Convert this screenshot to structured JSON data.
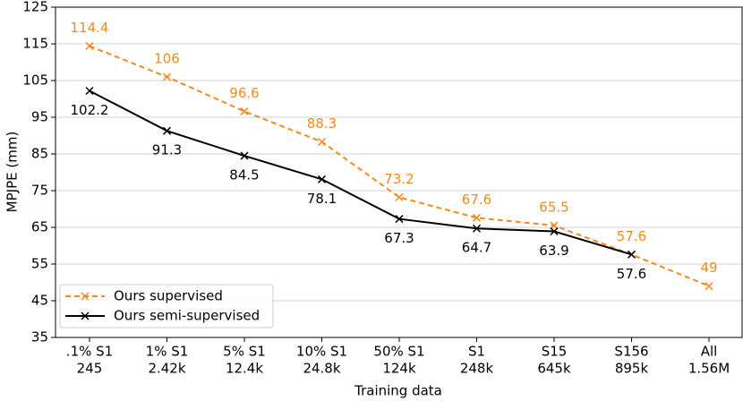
{
  "chart_data": {
    "type": "line",
    "x_label": "Training data",
    "y_label": "MPJPE (mm)",
    "categories": [
      [
        ".1% S1",
        "245"
      ],
      [
        "1% S1",
        "2.42k"
      ],
      [
        "5% S1",
        "12.4k"
      ],
      [
        "10% S1",
        "24.8k"
      ],
      [
        "50% S1",
        "124k"
      ],
      [
        "S1",
        "248k"
      ],
      [
        "S15",
        "645k"
      ],
      [
        "S156",
        "895k"
      ],
      [
        "All",
        "1.56M"
      ]
    ],
    "series": [
      {
        "name": "Ours supervised",
        "color": "#f28a1e",
        "dashed": true,
        "label_side": "above",
        "values": [
          114.4,
          106,
          96.6,
          88.3,
          73.2,
          67.6,
          65.5,
          57.6,
          49
        ]
      },
      {
        "name": "Ours semi-supervised",
        "color": "#000000",
        "dashed": false,
        "label_side": "below",
        "values": [
          102.2,
          91.3,
          84.5,
          78.1,
          67.3,
          64.7,
          63.9,
          57.6,
          null
        ]
      }
    ],
    "ylim": [
      35,
      125
    ],
    "yticks": [
      35,
      45,
      55,
      65,
      75,
      85,
      95,
      105,
      115,
      125
    ],
    "grid": true,
    "legend": "lower left"
  }
}
